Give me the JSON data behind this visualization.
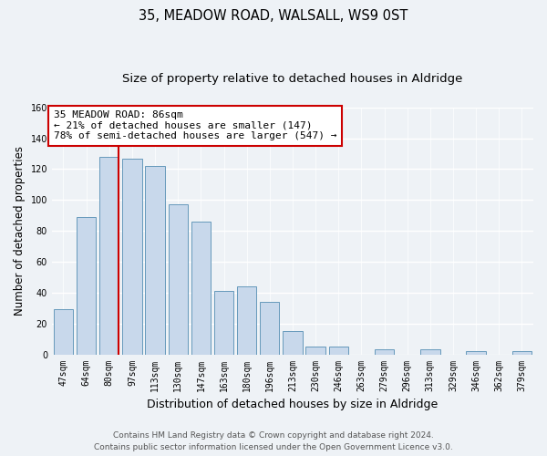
{
  "title": "35, MEADOW ROAD, WALSALL, WS9 0ST",
  "subtitle": "Size of property relative to detached houses in Aldridge",
  "xlabel": "Distribution of detached houses by size in Aldridge",
  "ylabel": "Number of detached properties",
  "bar_labels": [
    "47sqm",
    "64sqm",
    "80sqm",
    "97sqm",
    "113sqm",
    "130sqm",
    "147sqm",
    "163sqm",
    "180sqm",
    "196sqm",
    "213sqm",
    "230sqm",
    "246sqm",
    "263sqm",
    "279sqm",
    "296sqm",
    "313sqm",
    "329sqm",
    "346sqm",
    "362sqm",
    "379sqm"
  ],
  "bar_values": [
    29,
    89,
    128,
    127,
    122,
    97,
    86,
    41,
    44,
    34,
    15,
    5,
    5,
    0,
    3,
    0,
    3,
    0,
    2,
    0,
    2
  ],
  "bar_color": "#c8d8eb",
  "bar_edge_color": "#6699bb",
  "highlight_line_index": 2,
  "highlight_line_color": "#cc0000",
  "annotation_line1": "35 MEADOW ROAD: 86sqm",
  "annotation_line2": "← 21% of detached houses are smaller (147)",
  "annotation_line3": "78% of semi-detached houses are larger (547) →",
  "annotation_box_color": "#ffffff",
  "annotation_box_edge": "#cc0000",
  "ylim": [
    0,
    160
  ],
  "yticks": [
    0,
    20,
    40,
    60,
    80,
    100,
    120,
    140,
    160
  ],
  "footer_line1": "Contains HM Land Registry data © Crown copyright and database right 2024.",
  "footer_line2": "Contains public sector information licensed under the Open Government Licence v3.0.",
  "background_color": "#eef2f6",
  "plot_bg_color": "#eef2f6",
  "grid_color": "#ffffff",
  "title_fontsize": 10.5,
  "subtitle_fontsize": 9.5,
  "ylabel_fontsize": 8.5,
  "xlabel_fontsize": 9,
  "tick_fontsize": 7,
  "annotation_fontsize": 8,
  "footer_fontsize": 6.5
}
